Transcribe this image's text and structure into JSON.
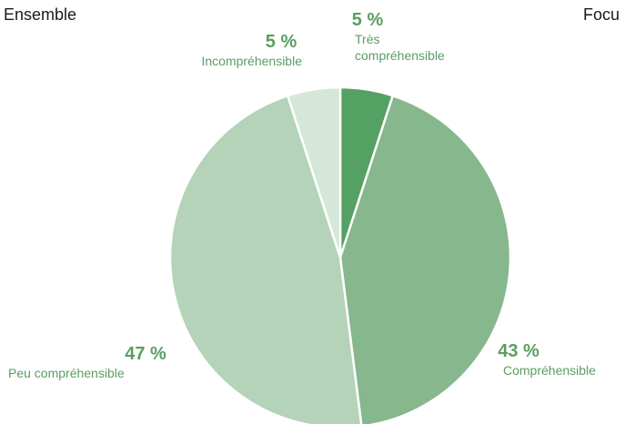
{
  "panels": {
    "left_title": "Ensemble",
    "right_title": "Focu"
  },
  "colors": {
    "label_green": "#5a9e62",
    "slice_stroke": "#ffffff"
  },
  "chart_data": {
    "type": "pie",
    "title": "Ensemble",
    "slices": [
      {
        "pct_label": "5 %",
        "label_lines": [
          "Très",
          "compréhensible"
        ],
        "value": 5,
        "color": "#55a063"
      },
      {
        "pct_label": "43 %",
        "label_lines": [
          "Compréhensible"
        ],
        "value": 43,
        "color": "#86b78d"
      },
      {
        "pct_label": "47 %",
        "label_lines": [
          "Peu compréhensible"
        ],
        "value": 47,
        "color": "#b4d3b9"
      },
      {
        "pct_label": "5 %",
        "label_lines": [
          "Incompréhensible"
        ],
        "value": 5,
        "color": "#d5e7d8"
      }
    ]
  }
}
